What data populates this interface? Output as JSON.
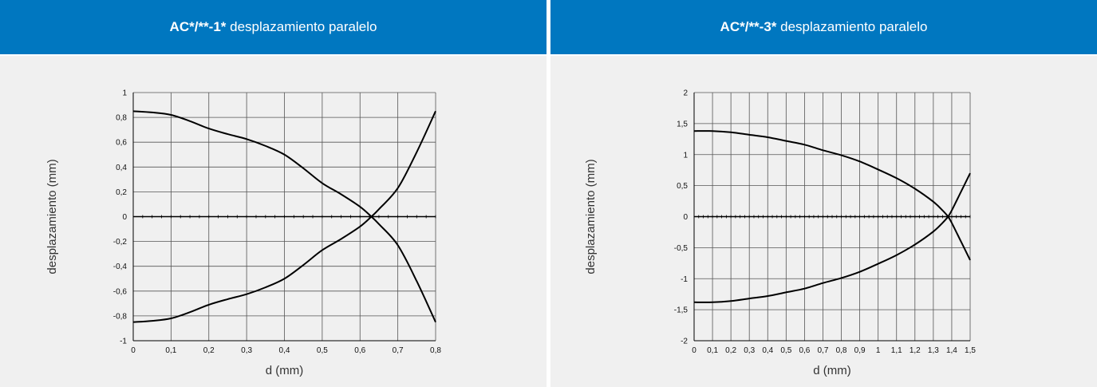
{
  "panels": [
    {
      "title_code": "AC*/**-1*",
      "title_text": "desplazamiento paralelo"
    },
    {
      "title_code": "AC*/**-3*",
      "title_text": "desplazamiento paralelo"
    }
  ],
  "chart_data": [
    {
      "type": "line",
      "title": "AC*/**-1* desplazamiento paralelo",
      "xlabel": "d (mm)",
      "ylabel": "desplazamiento (mm)",
      "xlim": [
        0,
        0.8
      ],
      "ylim": [
        -1,
        1
      ],
      "grid": true,
      "x_ticks": [
        "0",
        "0,1",
        "0,2",
        "0,3",
        "0,4",
        "0,5",
        "0,6",
        "0,7",
        "0,8"
      ],
      "y_ticks": [
        "-1",
        "-0,8",
        "-0,6",
        "-0,4",
        "-0,2",
        "0",
        "0,2",
        "0,4",
        "0,6",
        "0,8",
        "1"
      ],
      "series": [
        {
          "points": [
            [
              0,
              0.85
            ],
            [
              0.05,
              0.84
            ],
            [
              0.1,
              0.82
            ],
            [
              0.15,
              0.77
            ],
            [
              0.2,
              0.71
            ],
            [
              0.25,
              0.665
            ],
            [
              0.3,
              0.625
            ],
            [
              0.35,
              0.57
            ],
            [
              0.4,
              0.5
            ],
            [
              0.45,
              0.39
            ],
            [
              0.5,
              0.27
            ],
            [
              0.55,
              0.18
            ],
            [
              0.6,
              0.08
            ],
            [
              0.63,
              0.0
            ],
            [
              0.65,
              -0.06
            ],
            [
              0.7,
              -0.23
            ],
            [
              0.75,
              -0.52
            ],
            [
              0.8,
              -0.85
            ]
          ]
        },
        {
          "points": [
            [
              0,
              -0.85
            ],
            [
              0.05,
              -0.84
            ],
            [
              0.1,
              -0.82
            ],
            [
              0.15,
              -0.77
            ],
            [
              0.2,
              -0.71
            ],
            [
              0.25,
              -0.665
            ],
            [
              0.3,
              -0.625
            ],
            [
              0.35,
              -0.57
            ],
            [
              0.4,
              -0.5
            ],
            [
              0.45,
              -0.39
            ],
            [
              0.5,
              -0.27
            ],
            [
              0.55,
              -0.18
            ],
            [
              0.6,
              -0.08
            ],
            [
              0.63,
              0.0
            ],
            [
              0.65,
              0.06
            ],
            [
              0.7,
              0.23
            ],
            [
              0.75,
              0.52
            ],
            [
              0.8,
              0.85
            ]
          ]
        }
      ]
    },
    {
      "type": "line",
      "title": "AC*/**-3* desplazamiento paralelo",
      "xlabel": "d (mm)",
      "ylabel": "desplazamiento (mm)",
      "xlim": [
        0,
        1.5
      ],
      "ylim": [
        -2,
        2
      ],
      "grid": true,
      "x_ticks": [
        "0",
        "0,1",
        "0,2",
        "0,3",
        "0,4",
        "0,5",
        "0,6",
        "0,7",
        "0,8",
        "0,9",
        "1",
        "1,1",
        "1,2",
        "1,3",
        "1,4",
        "1,5"
      ],
      "y_ticks": [
        "-2",
        "-1,5",
        "-1",
        "-0,5",
        "0",
        "0,5",
        "1",
        "1,5",
        "2"
      ],
      "series": [
        {
          "points": [
            [
              0,
              1.38
            ],
            [
              0.1,
              1.38
            ],
            [
              0.2,
              1.36
            ],
            [
              0.3,
              1.32
            ],
            [
              0.4,
              1.28
            ],
            [
              0.5,
              1.22
            ],
            [
              0.6,
              1.16
            ],
            [
              0.7,
              1.07
            ],
            [
              0.8,
              0.99
            ],
            [
              0.9,
              0.89
            ],
            [
              1.0,
              0.76
            ],
            [
              1.1,
              0.62
            ],
            [
              1.2,
              0.45
            ],
            [
              1.3,
              0.24
            ],
            [
              1.35,
              0.1
            ],
            [
              1.38,
              0.0
            ],
            [
              1.4,
              -0.1
            ],
            [
              1.45,
              -0.4
            ],
            [
              1.5,
              -0.7
            ]
          ]
        },
        {
          "points": [
            [
              0,
              -1.38
            ],
            [
              0.1,
              -1.38
            ],
            [
              0.2,
              -1.36
            ],
            [
              0.3,
              -1.32
            ],
            [
              0.4,
              -1.28
            ],
            [
              0.5,
              -1.22
            ],
            [
              0.6,
              -1.16
            ],
            [
              0.7,
              -1.07
            ],
            [
              0.8,
              -0.99
            ],
            [
              0.9,
              -0.89
            ],
            [
              1.0,
              -0.76
            ],
            [
              1.1,
              -0.62
            ],
            [
              1.2,
              -0.45
            ],
            [
              1.3,
              -0.24
            ],
            [
              1.35,
              -0.1
            ],
            [
              1.38,
              0.0
            ],
            [
              1.4,
              0.1
            ],
            [
              1.45,
              0.4
            ],
            [
              1.5,
              0.7
            ]
          ]
        }
      ]
    }
  ]
}
